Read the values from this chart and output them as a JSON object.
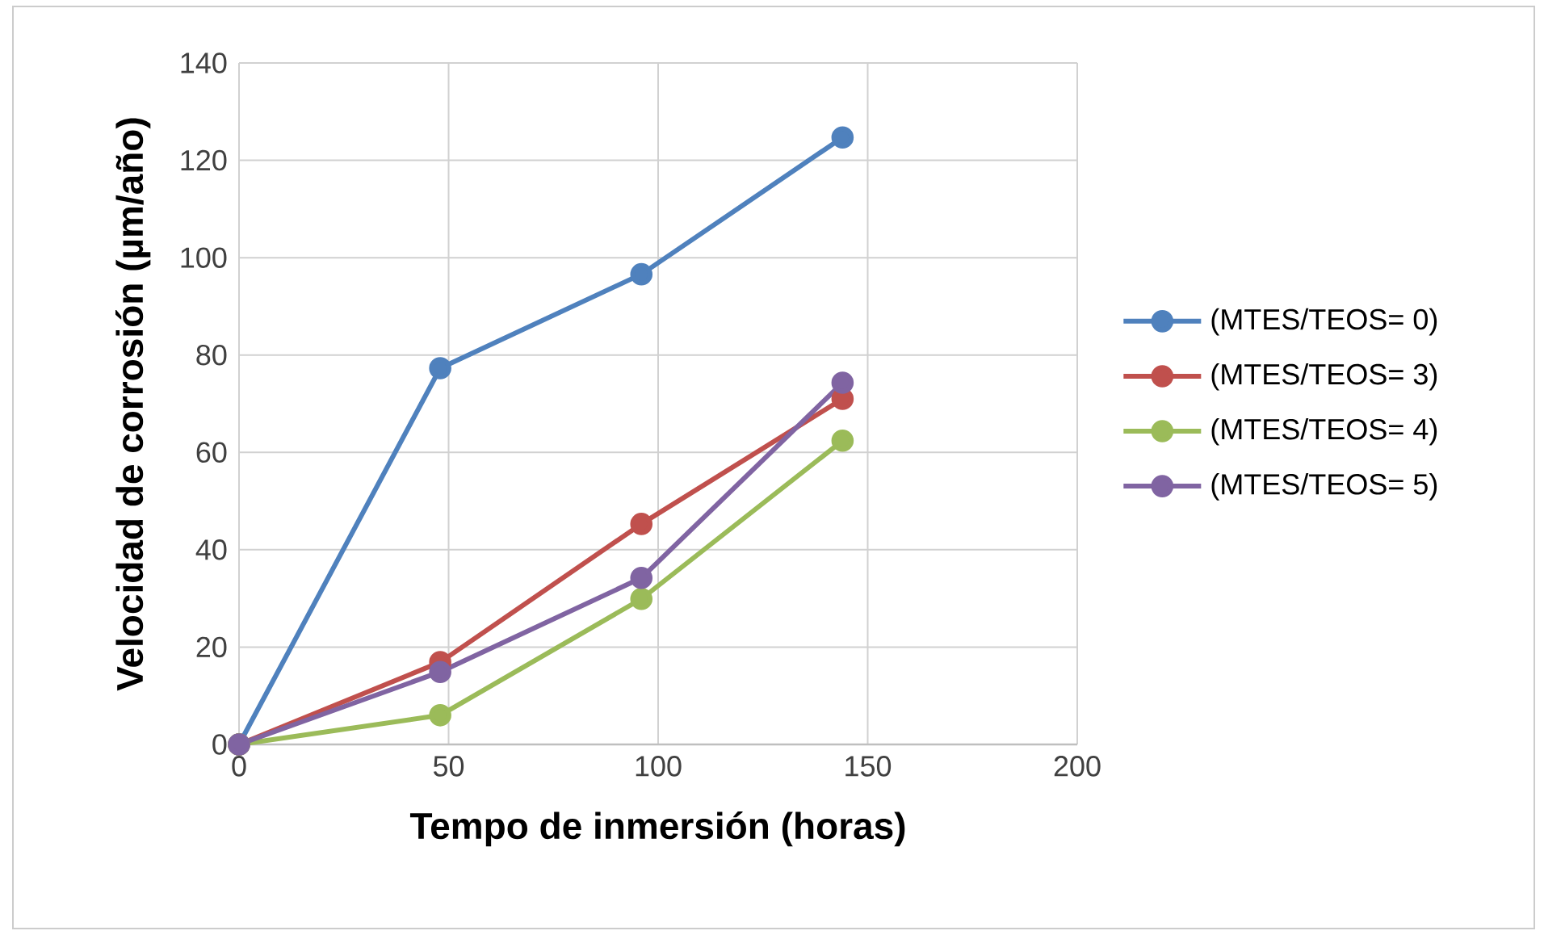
{
  "chart_data": {
    "type": "line",
    "xlabel": "Tempo de inmersión (horas)",
    "ylabel": "Velocidad de corrosión (µm/año)",
    "x": [
      0,
      48,
      96,
      144
    ],
    "series": [
      {
        "name": "(MTES/TEOS= 0)",
        "color": "#4f81bd",
        "values": [
          0,
          77.3,
          96.6,
          124.7
        ]
      },
      {
        "name": "(MTES/TEOS= 3)",
        "color": "#c0504d",
        "values": [
          0,
          16.9,
          45.3,
          71
        ]
      },
      {
        "name": "(MTES/TEOS= 4)",
        "color": "#9bbb59",
        "values": [
          0,
          6,
          29.9,
          62.4
        ]
      },
      {
        "name": "(MTES/TEOS= 5)",
        "color": "#8064a2",
        "values": [
          0,
          14.9,
          34.2,
          74.3
        ]
      }
    ],
    "xlim": [
      0,
      200
    ],
    "ylim": [
      0,
      140
    ],
    "xticks": [
      0,
      50,
      100,
      150,
      200
    ],
    "yticks": [
      0,
      20,
      40,
      60,
      80,
      100,
      120,
      140
    ],
    "grid": true,
    "legend": "right",
    "marker": "circle",
    "line_style": "solid"
  }
}
